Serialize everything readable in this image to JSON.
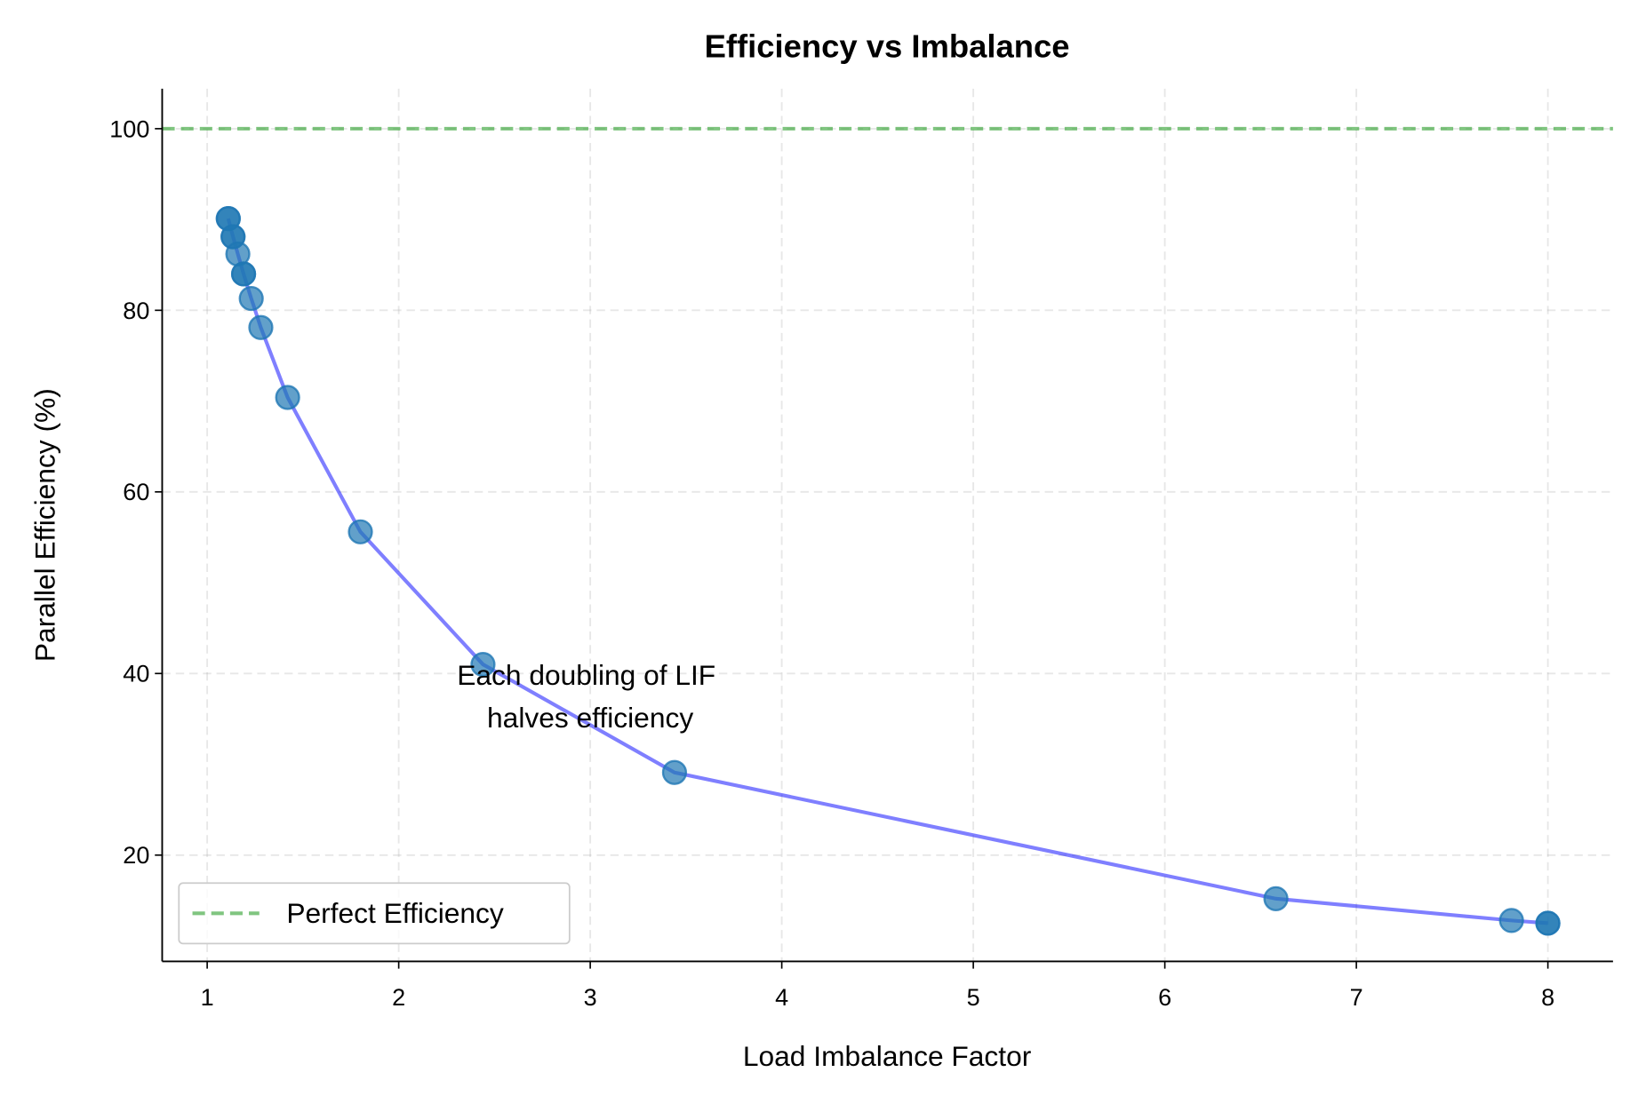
{
  "chart_data": {
    "type": "line",
    "title": "Efficiency vs Imbalance",
    "xlabel": "Load Imbalance Factor",
    "ylabel": "Parallel Efficiency (%)",
    "xlim": [
      0.765,
      8.34
    ],
    "ylim": [
      8.3,
      104.4
    ],
    "xticks": [
      1,
      2,
      3,
      4,
      5,
      6,
      7,
      8
    ],
    "yticks": [
      20,
      40,
      60,
      80,
      100
    ],
    "grid": true,
    "legend_placement": "lower-left",
    "series": [
      {
        "kind": "scatter+line",
        "color": "#1f77b4",
        "line_color": "#0000ff",
        "x": [
          1.11,
          1.11,
          1.135,
          1.135,
          1.16,
          1.19,
          1.19,
          1.23,
          1.28,
          1.42,
          1.8,
          2.44,
          3.44,
          6.58,
          7.81,
          8.0,
          8.0
        ],
        "y": [
          90.1,
          90.1,
          88.1,
          88.1,
          86.2,
          84.0,
          84.0,
          81.3,
          78.1,
          70.4,
          55.6,
          41.0,
          29.1,
          15.2,
          12.8,
          12.5,
          12.5
        ]
      },
      {
        "name": "Perfect Efficiency",
        "kind": "hline",
        "y": 100,
        "color": "#2ca02c",
        "style": "dashed"
      }
    ],
    "annotation": {
      "lines": [
        "Each doubling of LIF",
        "halves efficiency"
      ],
      "x": 3.0,
      "y": 37.5
    }
  }
}
